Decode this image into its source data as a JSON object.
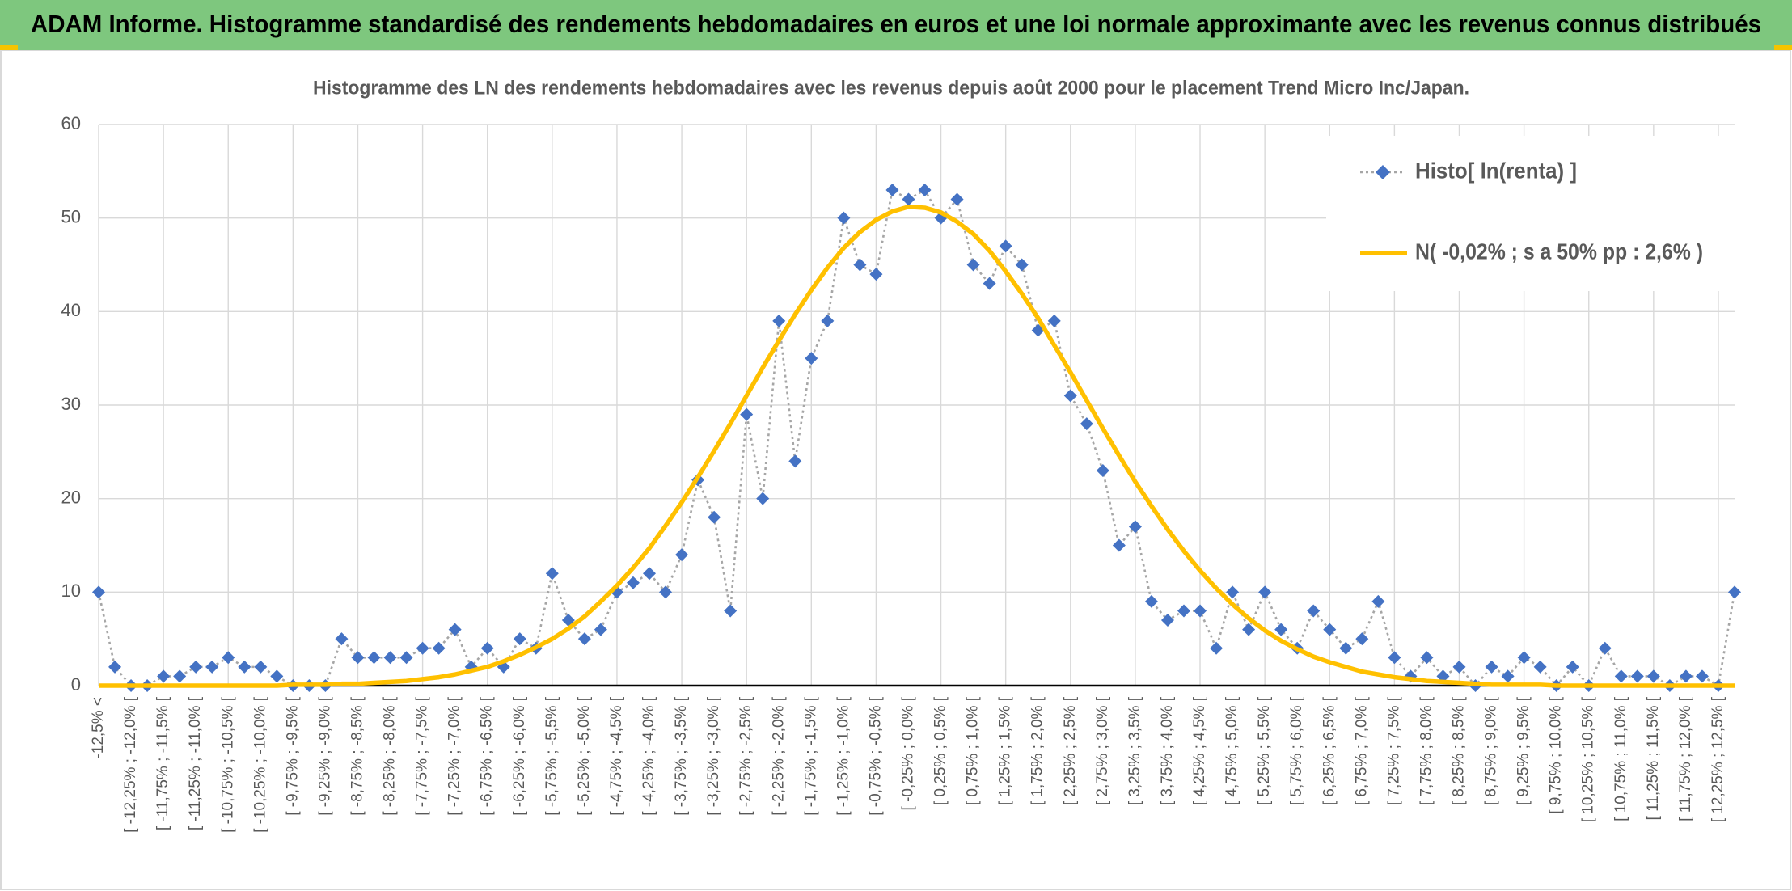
{
  "header": {
    "title": "ADAM Informe. Histogramme standardisé des rendements hebdomadaires en euros et une loi normale approximante avec les revenus connus distribués"
  },
  "chart_data": {
    "type": "line",
    "title": "Histogramme des LN des rendements hebdomadaires avec les revenus depuis août 2000 pour le placement Trend Micro Inc/Japan.",
    "categories": [
      "-12,5% <",
      null,
      "[ -12,25% ; -12,0% [",
      null,
      "[ -11,75% ; -11,5% [",
      null,
      "[ -11,25% ; -11,0% [",
      null,
      "[ -10,75% ; -10,5% [",
      null,
      "[ -10,25% ; -10,0% [",
      null,
      "[ -9,75% ; -9,5% [",
      null,
      "[ -9,25% ; -9,0% [",
      null,
      "[ -8,75% ; -8,5% [",
      null,
      "[ -8,25% ; -8,0% [",
      null,
      "[ -7,75% ; -7,5% [",
      null,
      "[ -7,25% ; -7,0% [",
      null,
      "[ -6,75% ; -6,5% [",
      null,
      "[ -6,25% ; -6,0% [",
      null,
      "[ -5,75% ; -5,5% [",
      null,
      "[ -5,25% ; -5,0% [",
      null,
      "[ -4,75% ; -4,5% [",
      null,
      "[ -4,25% ; -4,0% [",
      null,
      "[ -3,75% ; -3,5% [",
      null,
      "[ -3,25% ; -3,0% [",
      null,
      "[ -2,75% ; -2,5% [",
      null,
      "[ -2,25% ; -2,0% [",
      null,
      "[ -1,75% ; -1,5% [",
      null,
      "[ -1,25% ; -1,0% [",
      null,
      "[ -0,75% ; -0,5% [",
      null,
      "[ -0,25% ; 0,0% [",
      null,
      "[ 0,25% ; 0,5% [",
      null,
      "[ 0,75% ; 1,0% [",
      null,
      "[ 1,25% ; 1,5% [",
      null,
      "[ 1,75% ; 2,0% [",
      null,
      "[ 2,25% ; 2,5% [",
      null,
      "[ 2,75% ; 3,0% [",
      null,
      "[ 3,25% ; 3,5% [",
      null,
      "[ 3,75% ; 4,0% [",
      null,
      "[ 4,25% ; 4,5% [",
      null,
      "[ 4,75% ; 5,0% [",
      null,
      "[ 5,25% ; 5,5% [",
      null,
      "[ 5,75% ; 6,0% [",
      null,
      "[ 6,25% ; 6,5% [",
      null,
      "[ 6,75% ; 7,0% [",
      null,
      "[ 7,25% ; 7,5% [",
      null,
      "[ 7,75% ; 8,0% [",
      null,
      "[ 8,25% ; 8,5% [",
      null,
      "[ 8,75% ; 9,0% [",
      null,
      "[ 9,25% ; 9,5% [",
      null,
      "[ 9,75% ; 10,0% [",
      null,
      "[ 10,25% ; 10,5% [",
      null,
      "[ 10,75% ; 11,0% [",
      null,
      "[ 11,25% ; 11,5% [",
      null,
      "[ 11,75% ; 12,0% [",
      null,
      "[ 12,25% ; 12,5% [",
      null
    ],
    "series": [
      {
        "name": "Histo[ ln(renta) ]",
        "color": "#4472c4",
        "line_color": "#a6a6a6",
        "values": [
          10,
          2,
          0,
          0,
          1,
          1,
          2,
          2,
          3,
          2,
          2,
          1,
          0,
          0,
          0,
          5,
          3,
          3,
          3,
          3,
          4,
          4,
          6,
          2,
          4,
          2,
          5,
          4,
          12,
          7,
          5,
          6,
          10,
          11,
          12,
          10,
          14,
          22,
          18,
          8,
          29,
          20,
          39,
          24,
          35,
          39,
          50,
          45,
          44,
          53,
          52,
          53,
          50,
          52,
          45,
          43,
          47,
          45,
          38,
          39,
          31,
          28,
          23,
          15,
          17,
          9,
          7,
          8,
          8,
          4,
          10,
          6,
          10,
          6,
          4,
          8,
          6,
          4,
          5,
          9,
          3,
          1,
          3,
          1,
          2,
          0,
          2,
          1,
          3,
          2,
          0,
          2,
          0,
          4,
          1,
          1,
          1,
          0,
          1,
          1,
          0,
          10
        ]
      },
      {
        "name": "N( -0,02% ; s a 50% pp : 2,6% )",
        "color": "#ffc000",
        "values": [
          0,
          0,
          0,
          0,
          0,
          0,
          0,
          0,
          0,
          0,
          0,
          0,
          0.1,
          0.1,
          0.1,
          0.2,
          0.2,
          0.3,
          0.4,
          0.5,
          0.7,
          0.9,
          1.2,
          1.6,
          2.0,
          2.6,
          3.3,
          4.1,
          5.0,
          6.1,
          7.4,
          9.0,
          10.7,
          12.6,
          14.7,
          17.1,
          19.6,
          22.3,
          25.1,
          28.0,
          31.0,
          34.0,
          36.9,
          39.7,
          42.3,
          44.7,
          46.8,
          48.5,
          49.8,
          50.7,
          51.2,
          51.1,
          50.6,
          49.6,
          48.3,
          46.5,
          44.3,
          41.9,
          39.3,
          36.4,
          33.5,
          30.5,
          27.5,
          24.6,
          21.8,
          19.2,
          16.7,
          14.4,
          12.3,
          10.4,
          8.7,
          7.2,
          5.9,
          4.8,
          3.9,
          3.1,
          2.5,
          2.0,
          1.5,
          1.2,
          0.9,
          0.7,
          0.5,
          0.4,
          0.3,
          0.2,
          0.1,
          0.1,
          0.1,
          0.1,
          0,
          0,
          0,
          0,
          0,
          0,
          0,
          0,
          0,
          0,
          0,
          0
        ]
      }
    ],
    "ylim": [
      0,
      60
    ],
    "yticks": [
      0,
      10,
      20,
      30,
      40,
      50,
      60
    ],
    "grid": true,
    "legend": "top-right"
  }
}
